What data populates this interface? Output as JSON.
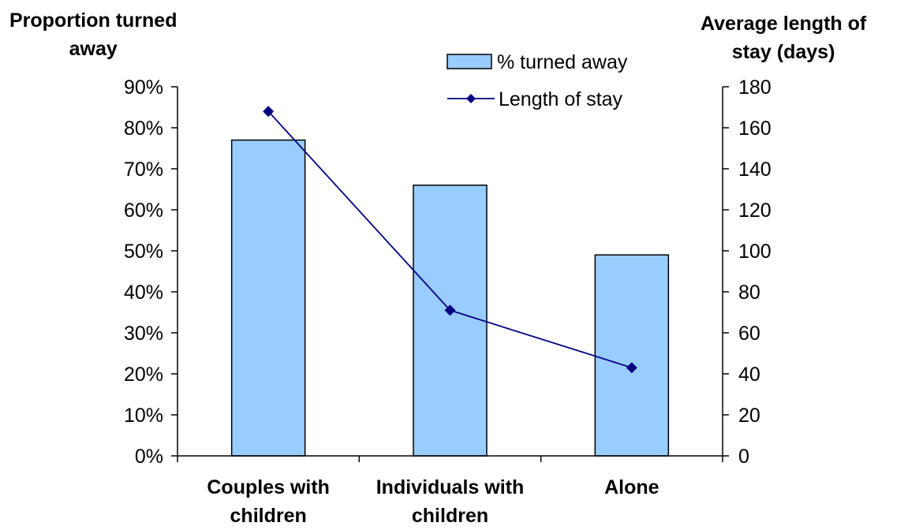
{
  "chart_data": {
    "type": "bar",
    "left_axis_title": [
      "Proportion turned",
      "away"
    ],
    "right_axis_title": [
      "Average length of",
      "stay (days)"
    ],
    "categories": [
      [
        "Couples with",
        "children"
      ],
      [
        "Individuals with",
        "children"
      ],
      [
        "Alone"
      ]
    ],
    "series": [
      {
        "name": "% turned away",
        "type": "bar",
        "axis": "left",
        "values": [
          77,
          66,
          49
        ],
        "color": "#99ccff"
      },
      {
        "name": "Length of stay",
        "type": "line",
        "axis": "right",
        "values": [
          168,
          71,
          43
        ],
        "color": "#000080"
      }
    ],
    "y_left": {
      "min": 0,
      "max": 90,
      "step": 10,
      "suffix": "%"
    },
    "y_right": {
      "min": 0,
      "max": 180,
      "step": 20
    },
    "legend_position": "top-right"
  }
}
